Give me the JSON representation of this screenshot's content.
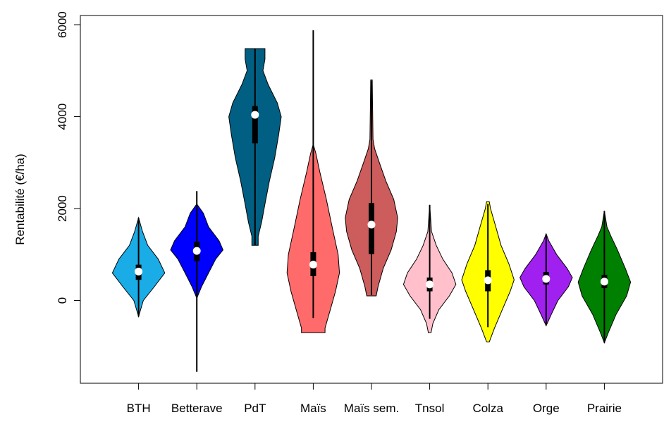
{
  "chart_data": {
    "type": "violin",
    "title": "",
    "xlabel": "",
    "ylabel": "Rentabilité (€/ha)",
    "ylim": [
      -1800,
      6200
    ],
    "yticks": [
      0,
      2000,
      4000,
      6000
    ],
    "grid": false,
    "categories": [
      "BTH",
      "Betterave",
      "PdT",
      "Maïs",
      "Maïs sem.",
      "Tnsol",
      "Colza",
      "Orge",
      "Prairie"
    ],
    "series": [
      {
        "category": "BTH",
        "color": "#1AACE6",
        "min": -350,
        "max": 1800,
        "q1": 450,
        "median": 630,
        "q3": 780,
        "density": [
          [
            -350,
            0
          ],
          [
            0,
            0.18
          ],
          [
            300,
            0.6
          ],
          [
            600,
            1.0
          ],
          [
            900,
            0.75
          ],
          [
            1200,
            0.35
          ],
          [
            1500,
            0.15
          ],
          [
            1800,
            0
          ]
        ]
      },
      {
        "category": "Betterave",
        "color": "#0000FF",
        "min": -1550,
        "max": 2380,
        "q1": 860,
        "median": 1080,
        "q3": 1280,
        "density": [
          [
            50,
            0
          ],
          [
            300,
            0.18
          ],
          [
            600,
            0.45
          ],
          [
            900,
            0.72
          ],
          [
            1100,
            1.0
          ],
          [
            1300,
            0.85
          ],
          [
            1600,
            0.45
          ],
          [
            1900,
            0.25
          ],
          [
            2100,
            0
          ]
        ]
      },
      {
        "category": "PdT",
        "color": "#005F82",
        "min": 1200,
        "max": 5480,
        "q1": 3420,
        "median": 4040,
        "q3": 4230,
        "density": [
          [
            1200,
            0.12
          ],
          [
            1400,
            0.12
          ],
          [
            1700,
            0.25
          ],
          [
            2100,
            0.38
          ],
          [
            2600,
            0.55
          ],
          [
            3100,
            0.75
          ],
          [
            3600,
            0.9
          ],
          [
            4000,
            1.0
          ],
          [
            4300,
            0.85
          ],
          [
            4700,
            0.5
          ],
          [
            5000,
            0.3
          ],
          [
            5250,
            0.38
          ],
          [
            5480,
            0.38
          ]
        ]
      },
      {
        "category": "Maïs",
        "color": "#FF6B6B",
        "min": -380,
        "max": 5880,
        "q1": 530,
        "median": 780,
        "q3": 1050,
        "density": [
          [
            -700,
            0.45
          ],
          [
            -600,
            0.45
          ],
          [
            -200,
            0.65
          ],
          [
            200,
            0.85
          ],
          [
            600,
            1.0
          ],
          [
            1000,
            0.95
          ],
          [
            1600,
            0.72
          ],
          [
            2200,
            0.5
          ],
          [
            2800,
            0.25
          ],
          [
            3200,
            0.1
          ],
          [
            3400,
            0
          ]
        ]
      },
      {
        "category": "Maïs sem.",
        "color": "#CD5C5C",
        "min": 120,
        "max": 4780,
        "q1": 1010,
        "median": 1650,
        "q3": 2120,
        "density": [
          [
            100,
            0.18
          ],
          [
            300,
            0.25
          ],
          [
            700,
            0.45
          ],
          [
            1100,
            0.75
          ],
          [
            1500,
            0.95
          ],
          [
            1800,
            1.0
          ],
          [
            2200,
            0.85
          ],
          [
            2600,
            0.55
          ],
          [
            3000,
            0.3
          ],
          [
            3300,
            0.12
          ],
          [
            3500,
            0.06
          ],
          [
            4300,
            0.04
          ],
          [
            4800,
            0.03
          ]
        ]
      },
      {
        "category": "Tnsol",
        "color": "#FFC0CB",
        "min": -400,
        "max": 2080,
        "q1": 200,
        "median": 350,
        "q3": 500,
        "density": [
          [
            -700,
            0.05
          ],
          [
            -500,
            0.12
          ],
          [
            -200,
            0.35
          ],
          [
            100,
            0.75
          ],
          [
            350,
            1.0
          ],
          [
            600,
            0.85
          ],
          [
            900,
            0.5
          ],
          [
            1200,
            0.25
          ],
          [
            1500,
            0.07
          ],
          [
            2080,
            0
          ]
        ]
      },
      {
        "category": "Colza",
        "color": "#FFFF00",
        "min": -580,
        "max": 2100,
        "q1": 200,
        "median": 440,
        "q3": 660,
        "density": [
          [
            -900,
            0.05
          ],
          [
            -600,
            0.25
          ],
          [
            -200,
            0.55
          ],
          [
            200,
            0.85
          ],
          [
            450,
            1.0
          ],
          [
            800,
            0.8
          ],
          [
            1200,
            0.5
          ],
          [
            1600,
            0.3
          ],
          [
            2000,
            0.1
          ],
          [
            2150,
            0.05
          ]
        ]
      },
      {
        "category": "Orge",
        "color": "#A020F0",
        "min": -520,
        "max": 1440,
        "q1": 350,
        "median": 470,
        "q3": 620,
        "density": [
          [
            -550,
            0
          ],
          [
            -300,
            0.2
          ],
          [
            0,
            0.45
          ],
          [
            300,
            0.85
          ],
          [
            500,
            1.0
          ],
          [
            700,
            0.8
          ],
          [
            1000,
            0.4
          ],
          [
            1300,
            0.1
          ],
          [
            1450,
            0
          ]
        ]
      },
      {
        "category": "Prairie",
        "color": "#008000",
        "min": -920,
        "max": 1950,
        "q1": 270,
        "median": 410,
        "q3": 560,
        "density": [
          [
            -920,
            0
          ],
          [
            -700,
            0.15
          ],
          [
            -300,
            0.45
          ],
          [
            100,
            0.85
          ],
          [
            400,
            1.0
          ],
          [
            700,
            0.8
          ],
          [
            1100,
            0.5
          ],
          [
            1400,
            0.25
          ],
          [
            1600,
            0.1
          ],
          [
            1950,
            0
          ]
        ]
      }
    ]
  }
}
